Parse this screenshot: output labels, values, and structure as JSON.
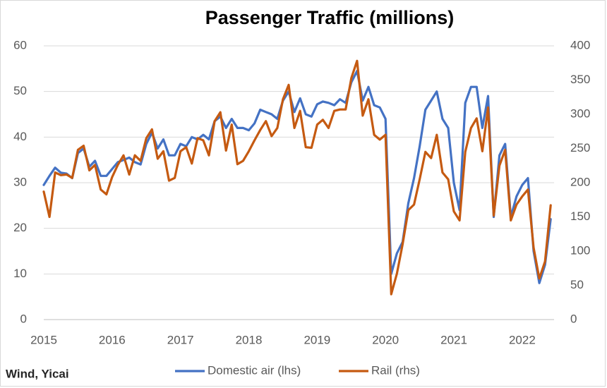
{
  "chart_data": {
    "type": "line",
    "title": "Passenger Traffic (millions)",
    "source": "Wind, Yicai",
    "categories": [
      "2015",
      null,
      null,
      null,
      null,
      null,
      null,
      null,
      null,
      null,
      null,
      null,
      "2016",
      null,
      null,
      null,
      null,
      null,
      null,
      null,
      null,
      null,
      null,
      null,
      "2017",
      null,
      null,
      null,
      null,
      null,
      null,
      null,
      null,
      null,
      null,
      null,
      "2018",
      null,
      null,
      null,
      null,
      null,
      null,
      null,
      null,
      null,
      null,
      null,
      "2019",
      null,
      null,
      null,
      null,
      null,
      null,
      null,
      null,
      null,
      null,
      null,
      "2020",
      null,
      null,
      null,
      null,
      null,
      null,
      null,
      null,
      null,
      null,
      null,
      "2021",
      null,
      null,
      null,
      null,
      null,
      null,
      null,
      null,
      null,
      null,
      null,
      "2022",
      null,
      null,
      null,
      null,
      null
    ],
    "series": [
      {
        "name": "Domestic air (lhs)",
        "color": "#4472c4",
        "axis": "y",
        "values": [
          29.5,
          31.5,
          33.3,
          32.2,
          32,
          31,
          36.5,
          37.5,
          33.5,
          34.8,
          31.5,
          31.5,
          33,
          34.5,
          35,
          35.5,
          34.5,
          34,
          38.5,
          41,
          37.5,
          39.5,
          36,
          36,
          38.5,
          38,
          40,
          39.5,
          40.5,
          39.5,
          43.5,
          44.5,
          42,
          44,
          42,
          42,
          41.5,
          43,
          46,
          45.5,
          45,
          44,
          48,
          50,
          45.5,
          48.5,
          45,
          44.5,
          47.2,
          47.8,
          47.5,
          47,
          48.3,
          47.5,
          52,
          54.5,
          48,
          51,
          47,
          46.5,
          44,
          10,
          14.5,
          17,
          25.5,
          31,
          38,
          46,
          48,
          50,
          44,
          42,
          30,
          24,
          47.5,
          51,
          51,
          42,
          49,
          22.5,
          36,
          38.5,
          22.5,
          27,
          29.5,
          31,
          15,
          8,
          12,
          22
        ]
      },
      {
        "name": "Rail (rhs)",
        "color": "#c55a11",
        "axis": "y2",
        "values": [
          187,
          150,
          215,
          211,
          212,
          207,
          248,
          254,
          218,
          226,
          190,
          183,
          208,
          226,
          240,
          212,
          240,
          232,
          265,
          278,
          235,
          246,
          203,
          207,
          246,
          252,
          228,
          265,
          262,
          240,
          290,
          303,
          247,
          285,
          227,
          232,
          246,
          262,
          277,
          290,
          268,
          280,
          322,
          343,
          280,
          305,
          252,
          251,
          285,
          292,
          280,
          305,
          307,
          307,
          353,
          378,
          298,
          322,
          270,
          263,
          270,
          37,
          67,
          110,
          160,
          168,
          205,
          245,
          236,
          270,
          215,
          205,
          158,
          145,
          245,
          280,
          294,
          246,
          310,
          152,
          225,
          248,
          145,
          168,
          180,
          190,
          105,
          60,
          85,
          167
        ]
      }
    ],
    "ylim": [
      0,
      60
    ],
    "yticks": [
      0,
      10,
      20,
      30,
      40,
      50,
      60
    ],
    "y2lim": [
      0,
      400
    ],
    "y2ticks": [
      0,
      50,
      100,
      150,
      200,
      250,
      300,
      350,
      400
    ],
    "grid": true
  }
}
